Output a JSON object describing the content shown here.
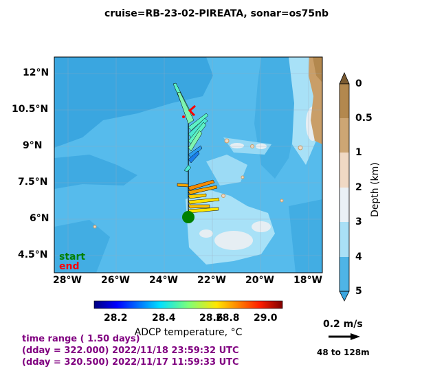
{
  "title": "cruise=RB-23-02-PIREATA,   sonar=os75nb",
  "map": {
    "lat_ticks": [
      "12°N",
      "10.5°N",
      "9°N",
      "7.5°N",
      "6°N",
      "4.5°N"
    ],
    "lon_ticks": [
      "28°W",
      "26°W",
      "24°W",
      "22°W",
      "20°W",
      "18°W"
    ],
    "start_label": "start",
    "end_label": "end",
    "colors": {
      "deep": "#3aa6e0",
      "mid": "#56bbec",
      "shallow": "#a8e1f7",
      "rise": "#e6eef3",
      "land": "#c99e68"
    }
  },
  "depth_colorbar": {
    "label": "Depth (km)",
    "ticks": [
      "0",
      "0.5",
      "1",
      "2",
      "3",
      "4",
      "5"
    ],
    "colors": [
      "#b3884e",
      "#cda674",
      "#f0d9c4",
      "#eaf1f6",
      "#a9e0f6",
      "#4eb4e6"
    ]
  },
  "temp_colorbar": {
    "label": "ADCP temperature, °C",
    "ticks": [
      "28.2",
      "28.4",
      "28.6",
      "28.8",
      "29.0"
    ]
  },
  "info": {
    "line1": "time range ( 1.50 days)",
    "line2": "(dday = 322.000) 2022/11/18 23:59:32 UTC",
    "line3": "(dday = 320.500) 2022/11/17 11:59:33 UTC"
  },
  "scale": {
    "speed": "0.2 m/s",
    "bins": "48 to 128m"
  }
}
